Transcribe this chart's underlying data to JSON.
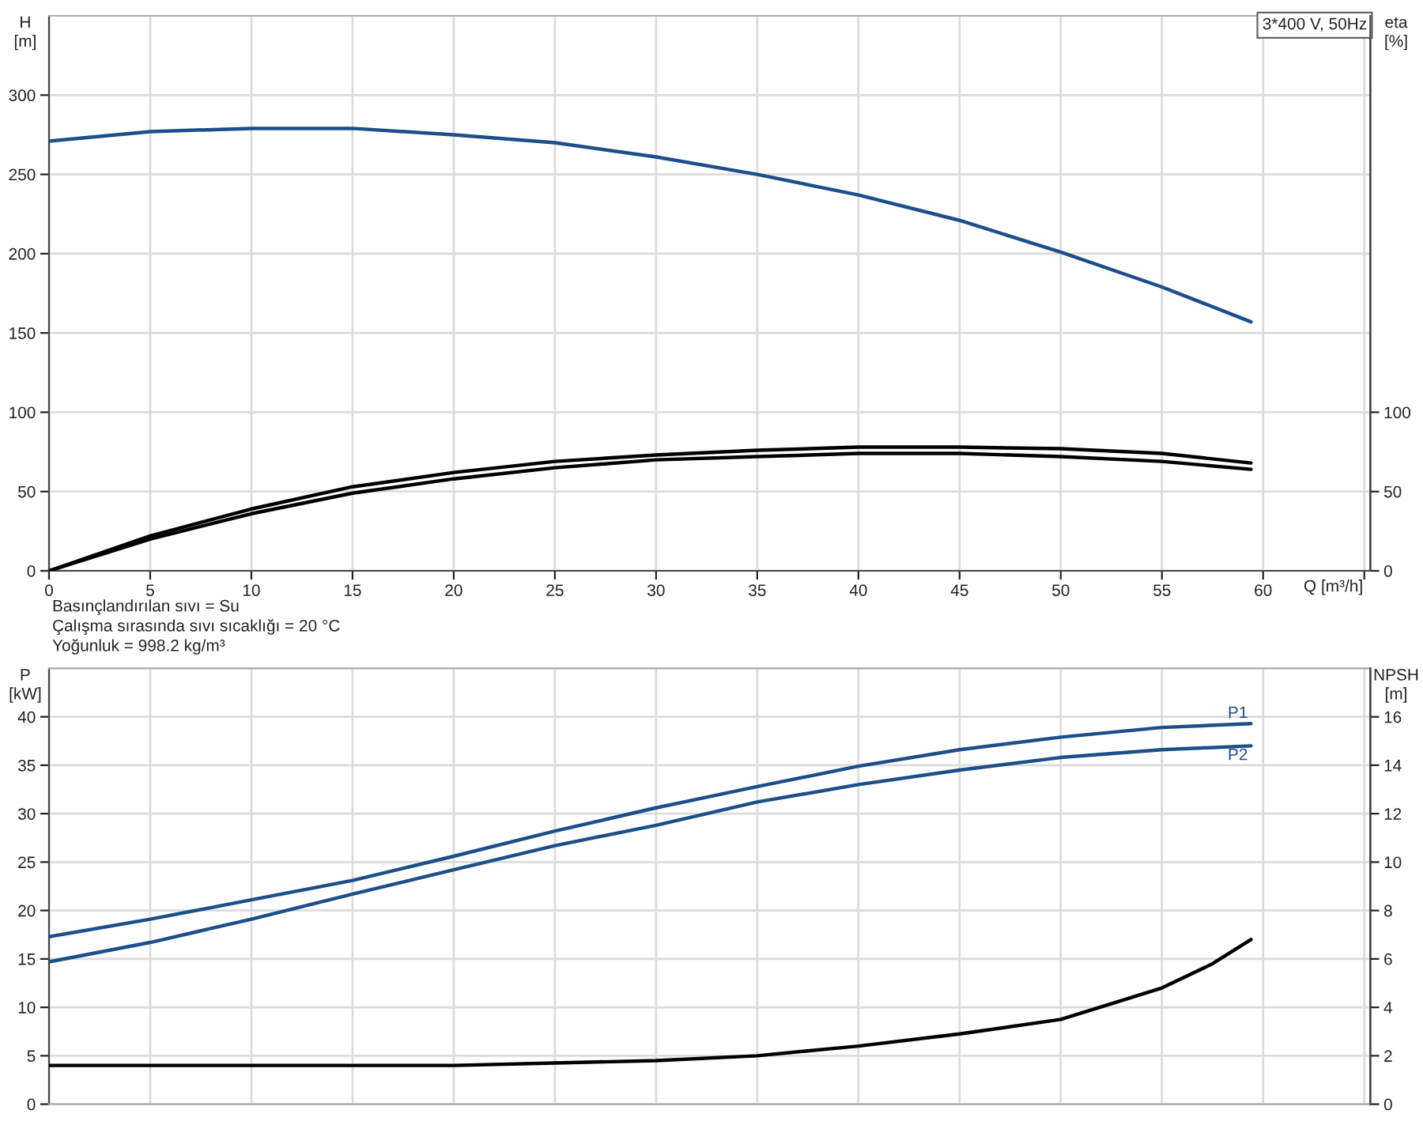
{
  "chart_data": [
    {
      "type": "line",
      "title": "3*400 V, 50Hz",
      "xlabel": "Q [m³/h]",
      "ylabel": "H\n[m]",
      "y2label": "eta\n[%]",
      "xlim": [
        0,
        65.3
      ],
      "xticks": [
        0,
        5,
        10,
        15,
        20,
        25,
        30,
        35,
        40,
        45,
        50,
        55,
        60,
        {
          "value": 65,
          "label": null
        }
      ],
      "ylim": [
        0,
        350
      ],
      "yticks": [
        0,
        50,
        100,
        150,
        200,
        250,
        300
      ],
      "y2lim": [
        0,
        350
      ],
      "y2ticks": [
        0,
        50,
        100
      ],
      "grid": true,
      "annotations": [
        "Basınçlandırılan sıvı = Su",
        "Çalışma sırasında sıvı sıcaklığı = 20 °C",
        "Yoğunluk = 998.2 kg/m³"
      ],
      "series": [
        {
          "color": "#1c4f8a",
          "x": [
            0,
            5,
            10,
            15,
            20,
            25,
            30,
            35,
            40,
            45,
            50,
            55,
            59.4
          ],
          "values": [
            271,
            277,
            279,
            279,
            275,
            270,
            261,
            250,
            237,
            221,
            201,
            179,
            157
          ]
        },
        {
          "color": "#000000",
          "axis": "y2",
          "x": [
            0,
            5,
            10,
            15,
            20,
            25,
            30,
            35,
            40,
            42.5,
            45,
            50,
            55,
            59.4
          ],
          "values": [
            0,
            22,
            39,
            53,
            62,
            69,
            73,
            76,
            78,
            78,
            78,
            77,
            74,
            68
          ]
        },
        {
          "color": "#000000",
          "axis": "y2",
          "x": [
            0,
            5,
            10,
            15,
            20,
            25,
            30,
            35,
            40,
            42.5,
            45,
            50,
            55,
            59.4
          ],
          "values": [
            0,
            20,
            36,
            49,
            58,
            65,
            70,
            72,
            74,
            74,
            74,
            72,
            69,
            64
          ]
        }
      ]
    },
    {
      "type": "line",
      "ylabel": "P\n[kW]",
      "y2label": "NPSH\n[m]",
      "xlim": [
        0,
        65.3
      ],
      "xticks": [
        0,
        5,
        10,
        15,
        20,
        25,
        30,
        35,
        40,
        45,
        50,
        55,
        60,
        {
          "value": 65,
          "label": null
        }
      ],
      "ylim": [
        0,
        45
      ],
      "yticks": [
        0,
        5,
        10,
        15,
        20,
        25,
        30,
        35,
        40
      ],
      "y2lim": [
        0,
        18
      ],
      "y2ticks": [
        0,
        2,
        4,
        6,
        8,
        10,
        12,
        14,
        16
      ],
      "grid": true,
      "tick_labels": "y",
      "series": [
        {
          "name": "P1",
          "color": "#1c4f8a",
          "x": [
            0,
            5,
            10,
            15,
            20,
            25,
            30,
            35,
            40,
            45,
            50,
            55,
            59.4
          ],
          "values": [
            17.3,
            19.1,
            21.1,
            23.1,
            25.6,
            28.2,
            30.6,
            32.8,
            34.9,
            36.6,
            37.9,
            38.9,
            39.3
          ]
        },
        {
          "name": "P2",
          "color": "#1c4f8a",
          "x": [
            0,
            5,
            10,
            15,
            20,
            25,
            30,
            35,
            40,
            45,
            50,
            55,
            59.4
          ],
          "values": [
            14.7,
            16.7,
            19.1,
            21.7,
            24.2,
            26.7,
            28.8,
            31.2,
            33.0,
            34.5,
            35.8,
            36.6,
            37.0
          ]
        },
        {
          "color": "#000000",
          "axis": "y2",
          "x": [
            0,
            10,
            20,
            25,
            30,
            35,
            40,
            45,
            50,
            55,
            57.5,
            59.4
          ],
          "values": [
            1.6,
            1.6,
            1.6,
            1.7,
            1.8,
            2.0,
            2.4,
            2.9,
            3.5,
            4.8,
            5.8,
            6.8
          ]
        }
      ]
    }
  ]
}
